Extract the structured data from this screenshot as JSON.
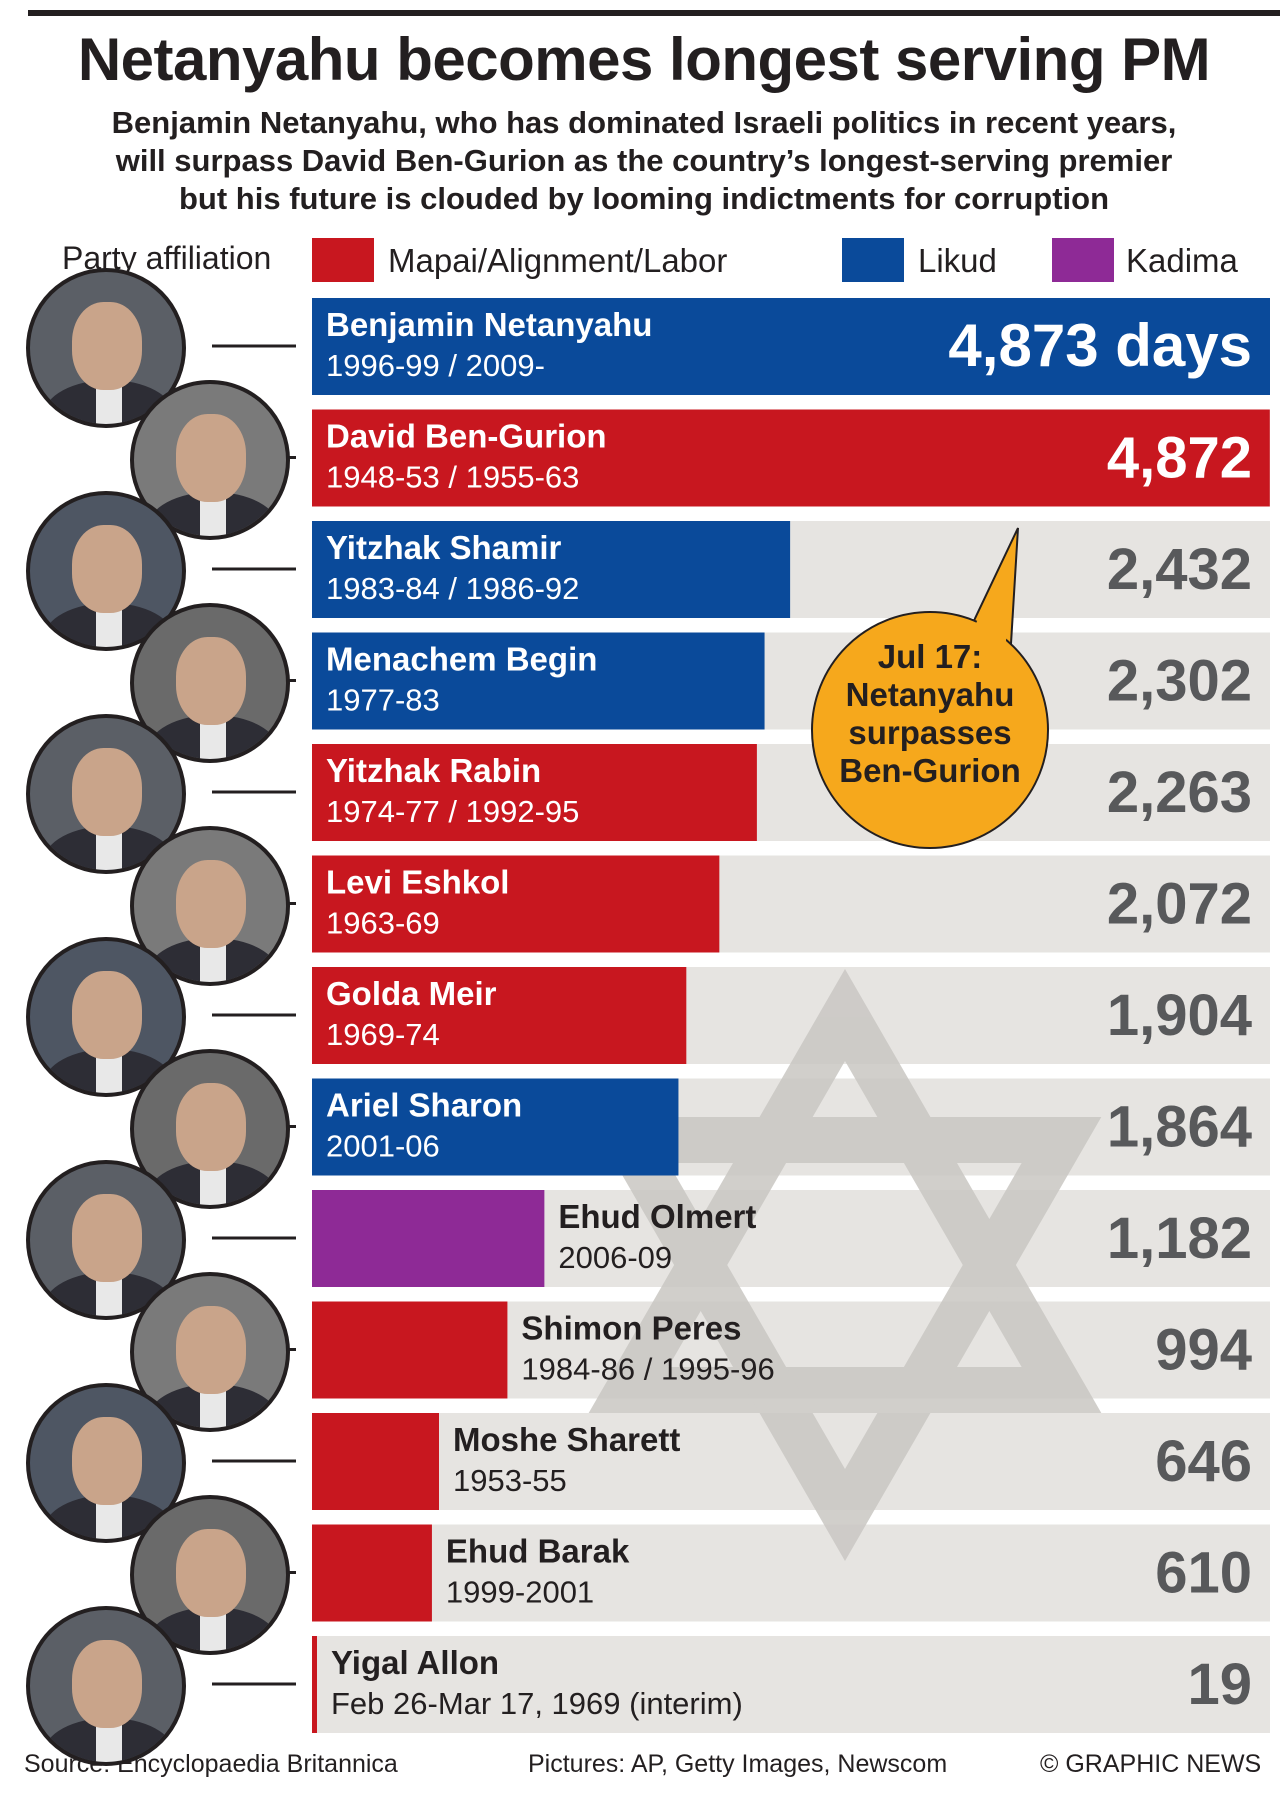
{
  "title": "Netanyahu becomes longest serving PM",
  "subtitle": [
    "Benjamin Netanyahu, who has dominated Israeli politics in recent years,",
    "will surpass David Ben-Gurion as the country’s longest-serving premier",
    "but his future is clouded by looming indictments for corruption"
  ],
  "legend": {
    "title": "Party affiliation",
    "items": [
      {
        "label": "Mapai/Alignment/Labor",
        "color": "#c8171f"
      },
      {
        "label": "Likud",
        "color": "#0a4a9a"
      },
      {
        "label": "Kadima",
        "color": "#8e2a96"
      }
    ]
  },
  "callout": [
    "Jul 17:",
    "Netanyahu",
    "surpasses",
    "Ben-Gurion"
  ],
  "footer": {
    "source": "Source: Encyclopaedia Britannica",
    "pictures": "Pictures: AP, Getty Images, Newscom",
    "credit": "© GRAPHIC NEWS"
  },
  "colors": {
    "labor": "#c8171f",
    "likud": "#0a4a9a",
    "kadima": "#8e2a96",
    "track": "#e6e4e1",
    "callout": "#f6a81c",
    "star": "#c9c7c3"
  },
  "chart_data": {
    "type": "bar",
    "orientation": "horizontal",
    "unit": "days in office",
    "xlim": [
      0,
      4873
    ],
    "bars": [
      {
        "name": "Benjamin Netanyahu",
        "years": "1996-99 / 2009-",
        "value": 4873,
        "value_label": "4,873 days",
        "party": "likud"
      },
      {
        "name": "David Ben-Gurion",
        "years": "1948-53 / 1955-63",
        "value": 4872,
        "value_label": "4,872",
        "party": "labor"
      },
      {
        "name": "Yitzhak Shamir",
        "years": "1983-84 / 1986-92",
        "value": 2432,
        "value_label": "2,432",
        "party": "likud"
      },
      {
        "name": "Menachem Begin",
        "years": "1977-83",
        "value": 2302,
        "value_label": "2,302",
        "party": "likud"
      },
      {
        "name": "Yitzhak Rabin",
        "years": "1974-77 / 1992-95",
        "value": 2263,
        "value_label": "2,263",
        "party": "labor"
      },
      {
        "name": "Levi Eshkol",
        "years": "1963-69",
        "value": 2072,
        "value_label": "2,072",
        "party": "labor"
      },
      {
        "name": "Golda Meir",
        "years": "1969-74",
        "value": 1904,
        "value_label": "1,904",
        "party": "labor"
      },
      {
        "name": "Ariel Sharon",
        "years": "2001-06",
        "value": 1864,
        "value_label": "1,864",
        "party": "likud"
      },
      {
        "name": "Ehud Olmert",
        "years": "2006-09",
        "value": 1182,
        "value_label": "1,182",
        "party": "kadima"
      },
      {
        "name": "Shimon Peres",
        "years": "1984-86 / 1995-96",
        "value": 994,
        "value_label": "994",
        "party": "labor"
      },
      {
        "name": "Moshe Sharett",
        "years": "1953-55",
        "value": 646,
        "value_label": "646",
        "party": "labor"
      },
      {
        "name": "Ehud Barak",
        "years": "1999-2001",
        "value": 610,
        "value_label": "610",
        "party": "labor"
      },
      {
        "name": "Yigal Allon",
        "years": "Feb 26-Mar 17, 1969  (interim)",
        "value": 19,
        "value_label": "19",
        "party": "labor"
      }
    ]
  }
}
